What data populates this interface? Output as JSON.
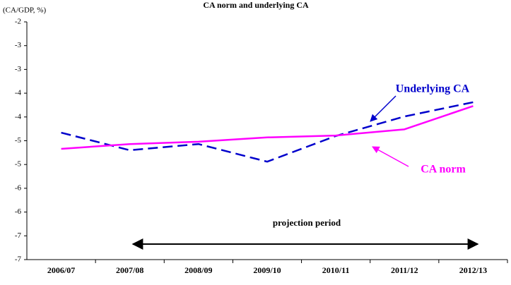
{
  "chart_data": {
    "type": "line",
    "title": "CA norm and underlying CA",
    "y_label": "(CA/GDP, %)",
    "categories": [
      "2006/07",
      "2007/08",
      "2008/09",
      "2009/10",
      "2010/11",
      "2011/12",
      "2012/13"
    ],
    "series": [
      {
        "name": "Underlying CA",
        "color": "#0000cc",
        "dashed": true,
        "values": [
          -4.33,
          -4.7,
          -4.57,
          -4.94,
          -4.4,
          -3.99,
          -3.69
        ]
      },
      {
        "name": "CA norm",
        "color": "#ff00ff",
        "dashed": false,
        "values": [
          -4.67,
          -4.57,
          -4.52,
          -4.43,
          -4.39,
          -4.26,
          -3.77
        ]
      }
    ],
    "annotation": "projection period",
    "ylim": [
      -7,
      -2
    ],
    "yticks": [
      -2,
      {
        "value": -2.5,
        "label": "-3"
      },
      -3,
      {
        "value": -3.5,
        "label": "-4"
      },
      -4,
      {
        "value": -4.5,
        "label": "-5"
      },
      -5,
      {
        "value": -5.5,
        "label": "-6"
      },
      -6,
      {
        "value": -6.5,
        "label": "-7"
      },
      -7
    ],
    "grid": false
  }
}
